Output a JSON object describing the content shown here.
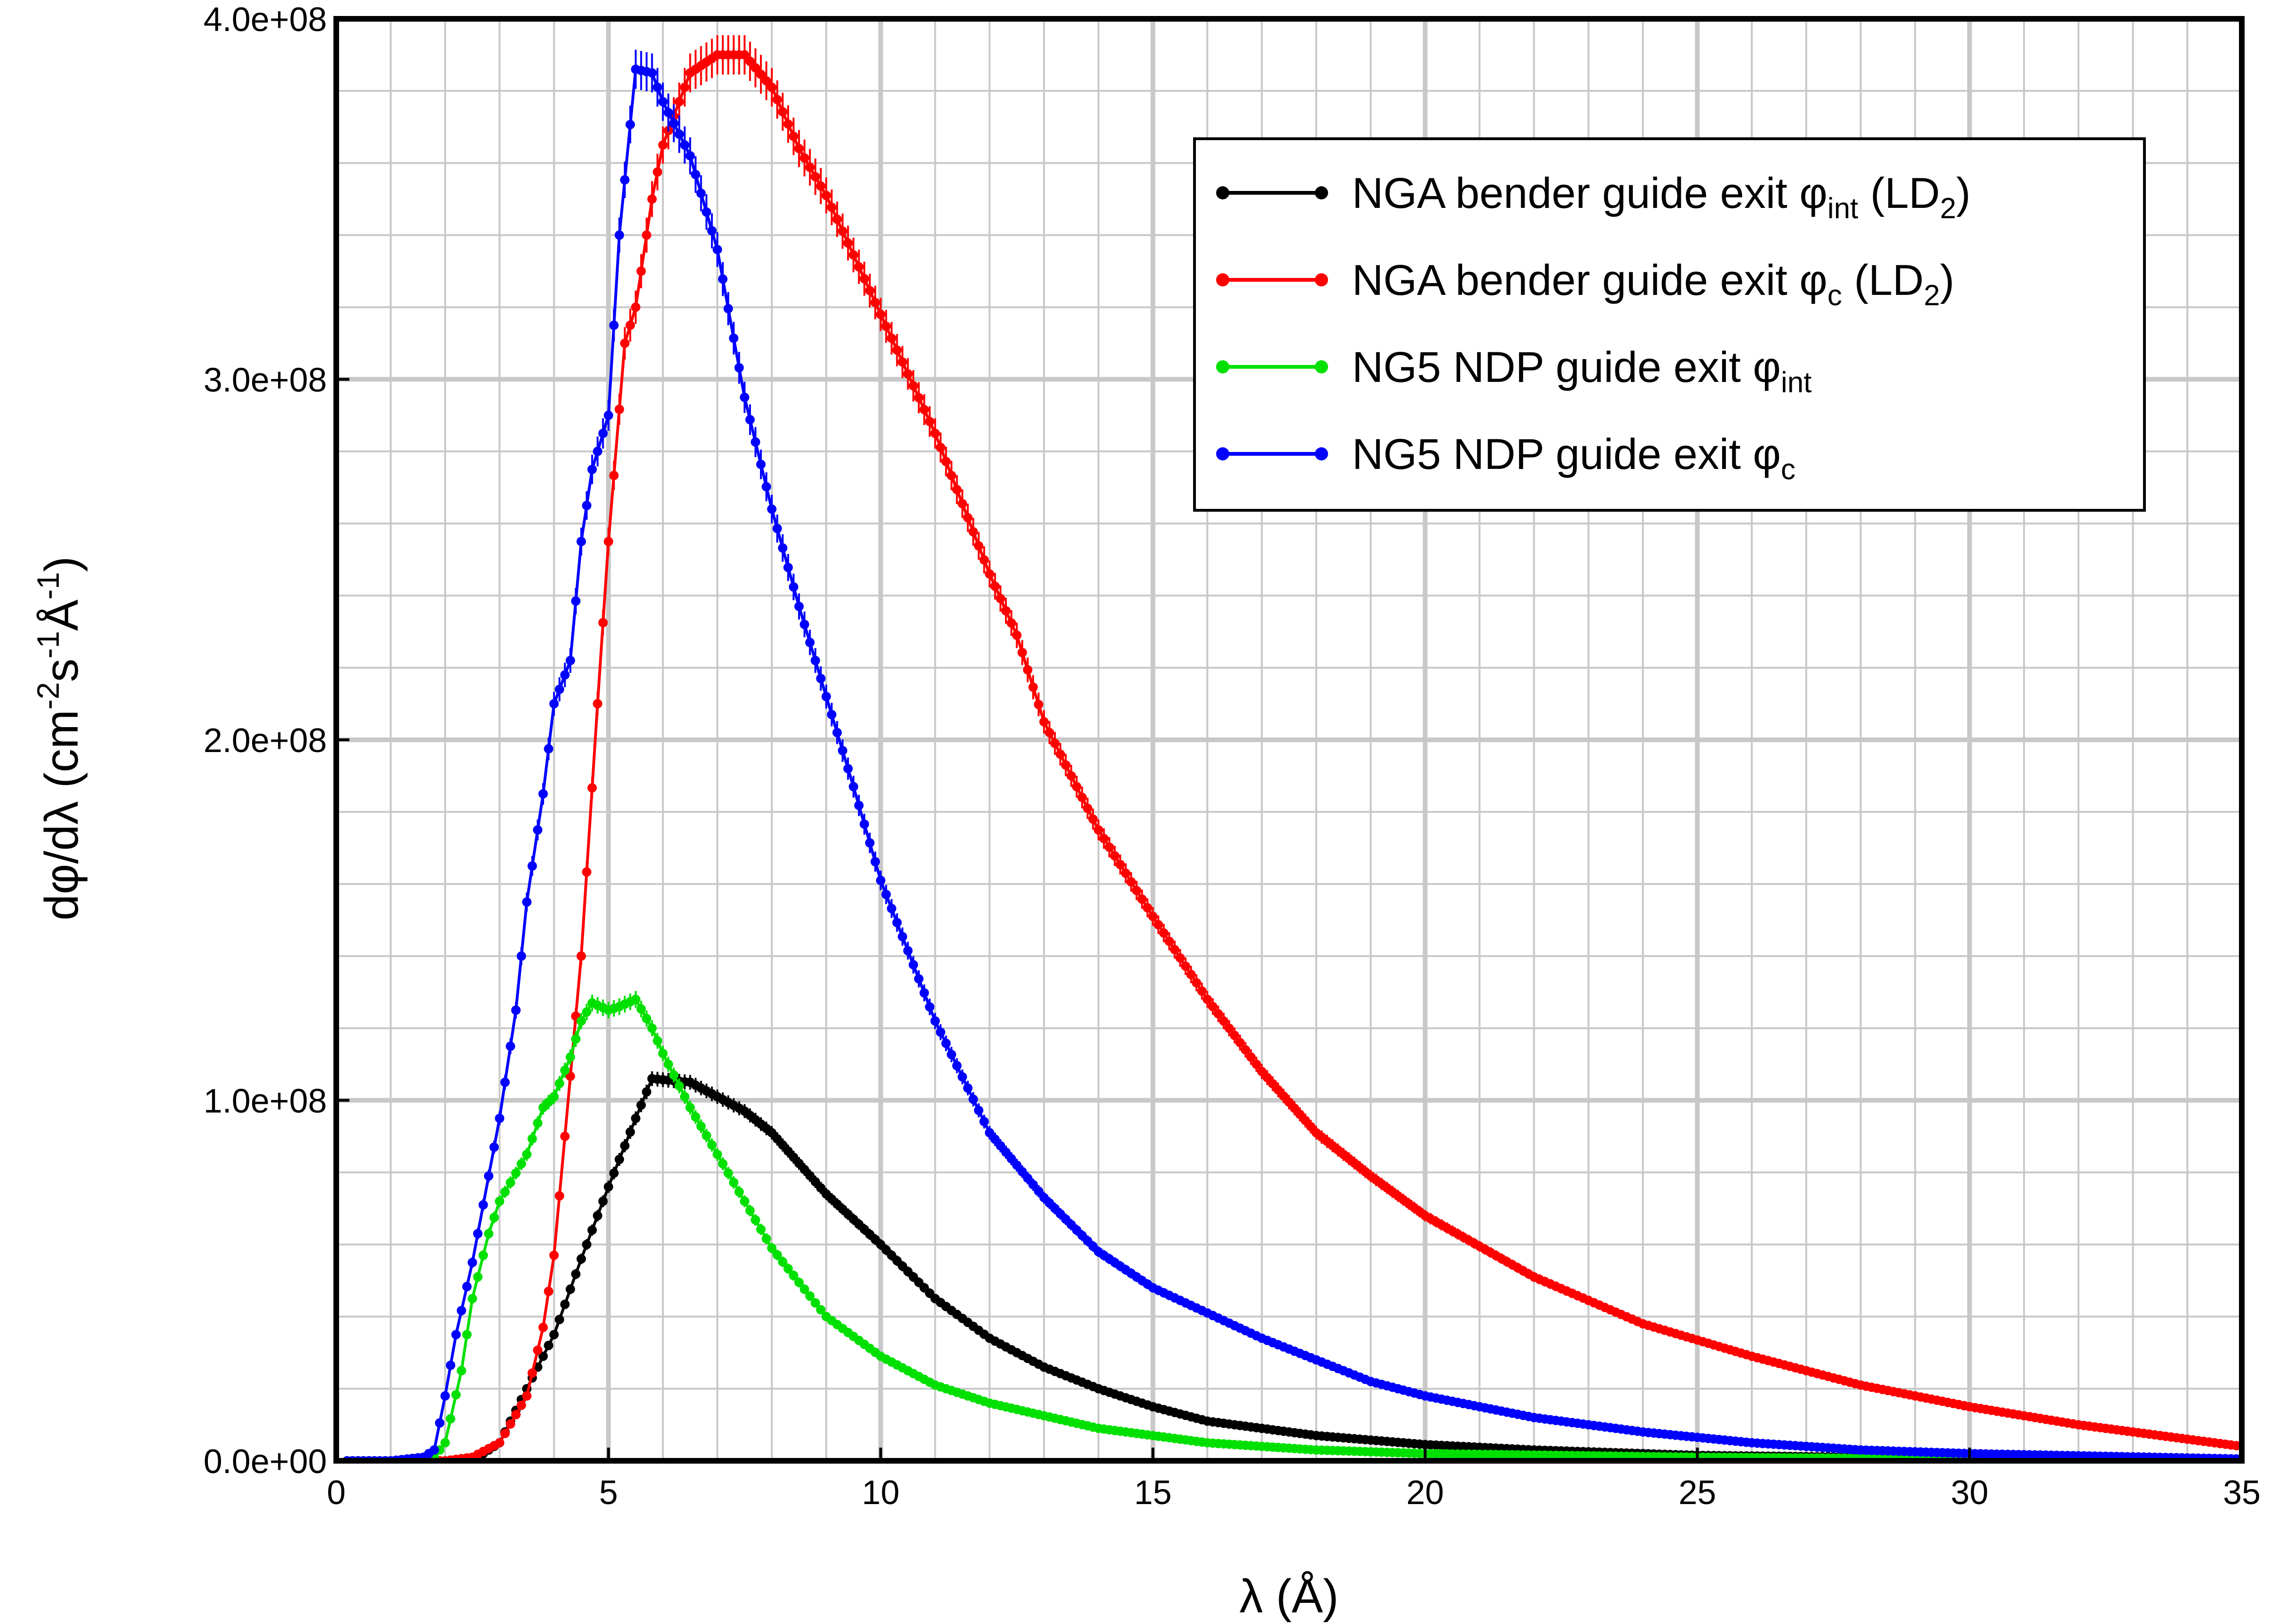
{
  "chart_data": {
    "type": "line",
    "title": "",
    "xlabel": "λ (Å)",
    "ylabel_parts": {
      "main": "dφ/dλ  (cm",
      "cm_exp": "-2",
      "s": "s",
      "s_exp": "-1",
      "A": "Å",
      "A_exp": "-1",
      "close": ")"
    },
    "xlim": [
      0,
      35
    ],
    "ylim": [
      0,
      400000000
    ],
    "xticks": [
      0,
      5,
      10,
      15,
      20,
      25,
      30,
      35
    ],
    "xtick_labels": [
      "0",
      "5",
      "10",
      "15",
      "20",
      "25",
      "30",
      "35"
    ],
    "yticks": [
      0,
      100000000,
      200000000,
      300000000,
      400000000
    ],
    "ytick_labels": [
      "0.0e+00",
      "1.0e+08",
      "2.0e+08",
      "3.0e+08",
      "4.0e+08"
    ],
    "grid": true,
    "legend_position": "top-right",
    "series": [
      {
        "name": "NGA bender guide exit φint (LD2)",
        "legend": {
          "pre": "NGA bender guide exit φ",
          "sub1": "int",
          "mid": " (LD",
          "sub2": "2",
          "post": ")"
        },
        "color": "#000000",
        "x": [
          0.2,
          1.0,
          2.0,
          2.6,
          3.0,
          3.5,
          4.0,
          4.5,
          5.0,
          5.5,
          5.8,
          6.5,
          7.5,
          8.0,
          9.0,
          10.0,
          11.0,
          12.0,
          13.0,
          14.0,
          15.0,
          16.0,
          17.0,
          18.0,
          20.0,
          22.0,
          25.0,
          28.0,
          30.0,
          35.0
        ],
        "y": [
          0,
          0,
          0,
          1000000,
          5000000,
          20000000,
          35000000,
          56000000,
          76000000,
          95000000,
          106000000,
          105000000,
          97000000,
          91000000,
          74000000,
          60000000,
          45000000,
          34000000,
          26000000,
          20000000,
          15000000,
          11000000,
          9000000,
          7000000,
          4500000,
          3000000,
          1500000,
          1000000,
          500000,
          200000
        ]
      },
      {
        "name": "NGA bender guide exit φc (LD2)",
        "legend": {
          "pre": "NGA bender guide exit φ",
          "sub1": "c",
          "mid": " (LD",
          "sub2": "2",
          "post": ")"
        },
        "color": "#ff0000",
        "x": [
          0.2,
          1.0,
          2.0,
          2.5,
          3.0,
          3.5,
          3.8,
          4.0,
          4.2,
          4.5,
          4.8,
          5.0,
          5.3,
          5.5,
          5.8,
          6.0,
          6.5,
          7.0,
          7.5,
          8.0,
          8.5,
          9.0,
          10.0,
          11.0,
          12.0,
          12.5,
          13.0,
          14.0,
          15.0,
          16.0,
          17.0,
          18.0,
          19.0,
          20.0,
          22.0,
          24.0,
          26.0,
          28.0,
          30.0,
          32.0,
          35.0
        ],
        "y": [
          0,
          0,
          0,
          1000000,
          5000000,
          18000000,
          37000000,
          57000000,
          90000000,
          140000000,
          210000000,
          255000000,
          310000000,
          320000000,
          350000000,
          365000000,
          385000000,
          390000000,
          390000000,
          381000000,
          364000000,
          351000000,
          318000000,
          285000000,
          246000000,
          229000000,
          205000000,
          175000000,
          151000000,
          128000000,
          108000000,
          91000000,
          79000000,
          68000000,
          51000000,
          38000000,
          29000000,
          21000000,
          15000000,
          10000000,
          4000000
        ]
      },
      {
        "name": "NG5 NDP guide exit φint",
        "legend": {
          "pre": "NG5 NDP guide exit φ",
          "sub1": "int",
          "mid": "",
          "sub2": "",
          "post": ""
        },
        "color": "#00e000",
        "x": [
          0.2,
          1.0,
          1.8,
          2.0,
          2.3,
          2.5,
          2.8,
          3.0,
          3.5,
          3.8,
          4.0,
          4.3,
          4.5,
          4.7,
          5.0,
          5.2,
          5.5,
          5.8,
          6.0,
          6.5,
          7.0,
          7.5,
          8.0,
          9.0,
          10.0,
          11.0,
          12.0,
          14.0,
          16.0,
          18.0,
          20.0,
          25.0,
          30.0,
          35.0
        ],
        "y": [
          0,
          0,
          1000000,
          5000000,
          25000000,
          45000000,
          63000000,
          72000000,
          85000000,
          98000000,
          101000000,
          112000000,
          122000000,
          127000000,
          125000000,
          126000000,
          128000000,
          120000000,
          113000000,
          98000000,
          85000000,
          72000000,
          59000000,
          40000000,
          29000000,
          21000000,
          16000000,
          9000000,
          5000000,
          3000000,
          2000000,
          1000000,
          500000,
          200000
        ]
      },
      {
        "name": "NG5 NDP guide exit φc",
        "legend": {
          "pre": "NG5 NDP guide exit φ",
          "sub1": "c",
          "mid": "",
          "sub2": "",
          "post": ""
        },
        "color": "#0000ff",
        "x": [
          0.2,
          1.0,
          1.6,
          1.8,
          2.0,
          2.2,
          2.5,
          3.0,
          3.3,
          3.5,
          3.8,
          4.0,
          4.3,
          4.5,
          4.7,
          5.0,
          5.2,
          5.5,
          5.8,
          6.0,
          6.5,
          7.0,
          7.5,
          8.0,
          8.5,
          9.0,
          9.5,
          10.0,
          11.0,
          12.0,
          13.0,
          14.0,
          15.0,
          16.0,
          17.0,
          18.0,
          19.0,
          20.0,
          22.0,
          24.0,
          26.0,
          28.0,
          30.0,
          35.0
        ],
        "y": [
          0,
          0,
          1000000,
          3000000,
          18000000,
          35000000,
          55000000,
          95000000,
          125000000,
          155000000,
          185000000,
          210000000,
          222000000,
          255000000,
          275000000,
          290000000,
          340000000,
          386000000,
          385000000,
          377000000,
          362000000,
          336000000,
          295000000,
          264000000,
          237000000,
          212000000,
          187000000,
          161000000,
          122000000,
          91000000,
          73000000,
          58000000,
          48000000,
          41000000,
          34000000,
          28000000,
          22000000,
          18000000,
          12000000,
          8000000,
          5000000,
          3000000,
          2000000,
          500000
        ]
      }
    ]
  }
}
